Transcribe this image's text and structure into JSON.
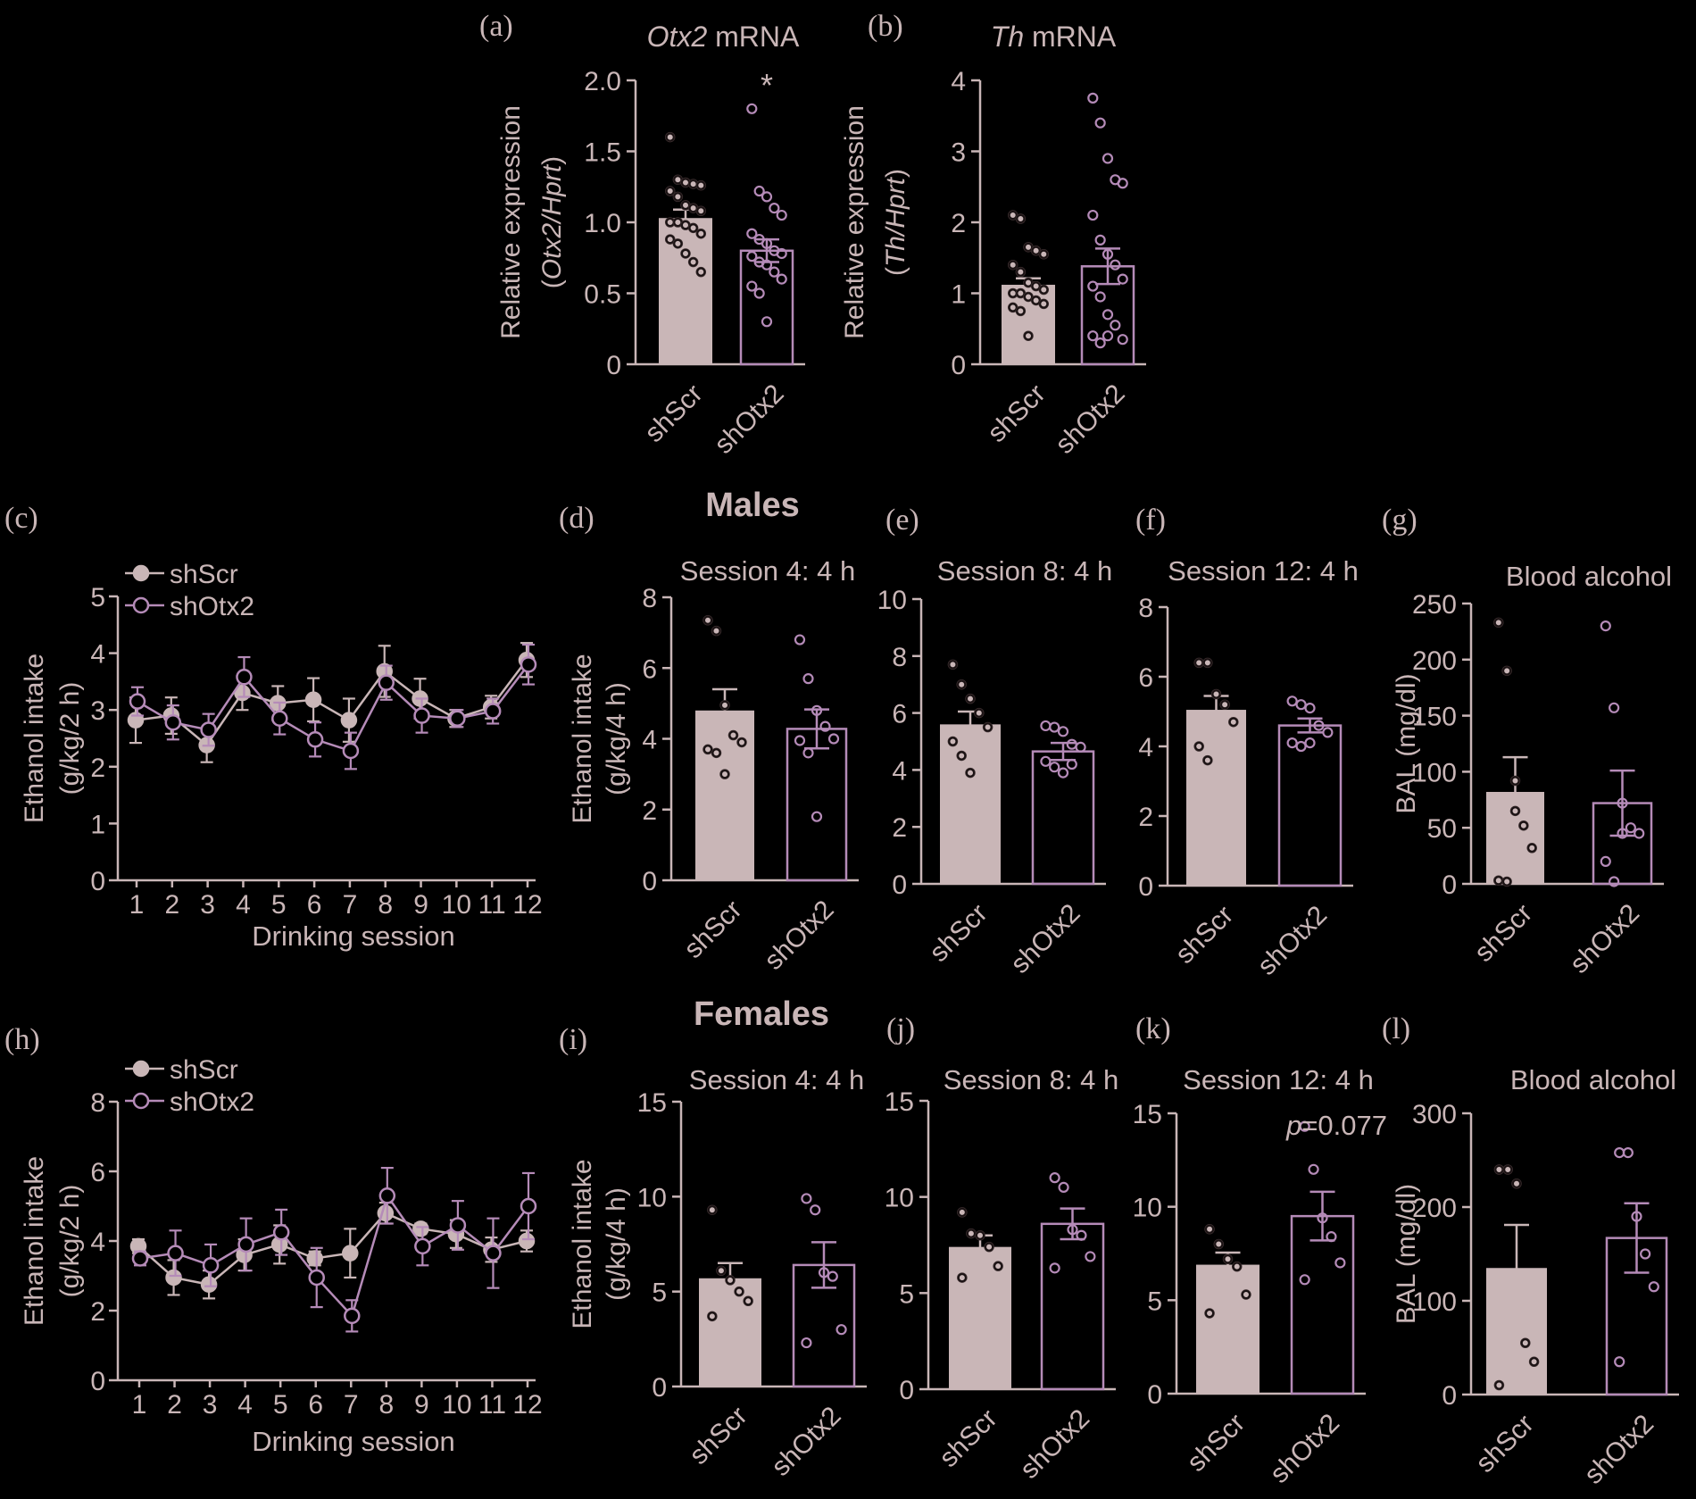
{
  "colors": {
    "background": "#000000",
    "text": "#c9b6b7",
    "axis": "#c9b6b7",
    "shScr": "#c9b6b7",
    "shScr_dark": "#2a1f20",
    "shOtx2": "#b58bb8"
  },
  "section_titles": {
    "males": "Males",
    "females": "Females"
  },
  "chart_data": [
    {
      "id": "a",
      "type": "bar",
      "panel_label": "(a)",
      "title_italic": "Otx2",
      "title_rest": " mRNA",
      "ylabel": "Relative expression",
      "ylabel2_italic": "Otx2/Hprt",
      "categories": [
        "shScr",
        "shOtx2"
      ],
      "ylim": [
        0,
        2.0
      ],
      "yticks": [
        0,
        0.5,
        1.0,
        1.5,
        2.0
      ],
      "yticklabels": [
        "0",
        "0.5",
        "1.0",
        "1.5",
        "2.0"
      ],
      "means": [
        1.03,
        0.8
      ],
      "errors": [
        0.06,
        0.08
      ],
      "points": [
        [
          1.6,
          1.3,
          1.28,
          1.27,
          1.26,
          1.22,
          1.18,
          1.12,
          1.1,
          1.08,
          1.0,
          1.0,
          0.98,
          0.96,
          0.92,
          0.88,
          0.85,
          0.78,
          0.72,
          0.65
        ],
        [
          1.8,
          1.22,
          1.18,
          1.1,
          1.05,
          0.92,
          0.88,
          0.85,
          0.8,
          0.78,
          0.76,
          0.72,
          0.7,
          0.65,
          0.6,
          0.55,
          0.5,
          0.3
        ]
      ],
      "annotation": "*"
    },
    {
      "id": "b",
      "type": "bar",
      "panel_label": "(b)",
      "title_italic": "Th",
      "title_rest": " mRNA",
      "ylabel": "Relative expression",
      "ylabel2_italic": "Th/Hprt",
      "categories": [
        "shScr",
        "shOtx2"
      ],
      "ylim": [
        0,
        4
      ],
      "yticks": [
        0,
        1,
        2,
        3,
        4
      ],
      "yticklabels": [
        "0",
        "1",
        "2",
        "3",
        "4"
      ],
      "means": [
        1.12,
        1.38
      ],
      "errors": [
        0.09,
        0.25
      ],
      "points": [
        [
          2.1,
          2.05,
          1.65,
          1.6,
          1.55,
          1.4,
          1.3,
          1.15,
          1.1,
          1.05,
          1.0,
          1.0,
          0.95,
          0.9,
          0.85,
          0.8,
          0.75,
          0.4
        ],
        [
          3.75,
          3.4,
          2.9,
          2.6,
          2.55,
          2.1,
          1.75,
          1.55,
          1.4,
          1.2,
          1.1,
          0.95,
          0.7,
          0.55,
          0.35,
          0.4,
          0.3,
          0.4
        ]
      ]
    },
    {
      "id": "c",
      "type": "line",
      "panel_label": "(c)",
      "xlabel": "Drinking session",
      "ylabel": "Ethanol intake",
      "ylabel2": "(g/kg/2 h)",
      "x": [
        1,
        2,
        3,
        4,
        5,
        6,
        7,
        8,
        9,
        10,
        11,
        12
      ],
      "ylim": [
        0,
        5
      ],
      "yticks": [
        0,
        1,
        2,
        3,
        4,
        5
      ],
      "yticklabels": [
        "0",
        "1",
        "2",
        "3",
        "4",
        "5"
      ],
      "series": [
        {
          "name": "shScr",
          "values": [
            2.82,
            2.9,
            2.38,
            3.3,
            3.12,
            3.18,
            2.82,
            3.68,
            3.2,
            2.85,
            3.05,
            3.88
          ],
          "errors": [
            0.4,
            0.32,
            0.3,
            0.3,
            0.3,
            0.38,
            0.38,
            0.45,
            0.35,
            0.15,
            0.2,
            0.3
          ]
        },
        {
          "name": "shOtx2",
          "values": [
            3.15,
            2.78,
            2.65,
            3.58,
            2.85,
            2.48,
            2.28,
            3.48,
            2.9,
            2.85,
            2.98,
            3.8
          ],
          "errors": [
            0.25,
            0.3,
            0.28,
            0.35,
            0.28,
            0.3,
            0.32,
            0.3,
            0.3,
            0.15,
            0.22,
            0.35
          ]
        }
      ]
    },
    {
      "id": "d",
      "type": "bar",
      "panel_label": "(d)",
      "title": "Session 4: 4 h",
      "ylabel": "Ethanol intake",
      "ylabel2": "(g/kg/4 h)",
      "categories": [
        "shScr",
        "shOtx2"
      ],
      "ylim": [
        0,
        8
      ],
      "yticks": [
        0,
        2,
        4,
        6,
        8
      ],
      "yticklabels": [
        "0",
        "2",
        "4",
        "6",
        "8"
      ],
      "means": [
        4.8,
        4.28
      ],
      "errors": [
        0.6,
        0.55
      ],
      "points": [
        [
          7.35,
          7.05,
          4.95,
          4.1,
          3.9,
          3.7,
          3.6,
          3.0
        ],
        [
          6.8,
          5.7,
          4.8,
          4.35,
          4.0,
          3.95,
          3.6,
          1.8
        ]
      ]
    },
    {
      "id": "e",
      "type": "bar",
      "panel_label": "(e)",
      "title": "Session 8: 4 h",
      "categories": [
        "shScr",
        "shOtx2"
      ],
      "ylim": [
        0,
        10
      ],
      "yticks": [
        0,
        2,
        4,
        6,
        8,
        10
      ],
      "yticklabels": [
        "0",
        "2",
        "4",
        "6",
        "8",
        "10"
      ],
      "means": [
        5.6,
        4.65
      ],
      "errors": [
        0.45,
        0.3
      ],
      "points": [
        [
          7.7,
          7.0,
          6.5,
          6.0,
          5.5,
          5.0,
          4.5,
          3.9
        ],
        [
          5.55,
          5.5,
          5.35,
          4.9,
          4.8,
          4.3,
          4.1,
          3.9,
          4.2
        ]
      ]
    },
    {
      "id": "f",
      "type": "bar",
      "panel_label": "(f)",
      "title": "Session 12: 4 h",
      "categories": [
        "shScr",
        "shOtx2"
      ],
      "ylim": [
        0,
        8
      ],
      "yticks": [
        0,
        2,
        4,
        6,
        8
      ],
      "yticklabels": [
        "0",
        "2",
        "4",
        "6",
        "8"
      ],
      "means": [
        5.05,
        4.6
      ],
      "errors": [
        0.4,
        0.2
      ],
      "points": [
        [
          6.4,
          6.4,
          5.5,
          5.2,
          4.7,
          4.0,
          3.6
        ],
        [
          5.3,
          5.2,
          5.1,
          4.6,
          4.4,
          4.1,
          4.0,
          4.1
        ]
      ]
    },
    {
      "id": "g",
      "type": "bar",
      "panel_label": "(g)",
      "title": "Blood alcohol",
      "ylabel": "BAL (mg/dl)",
      "categories": [
        "shScr",
        "shOtx2"
      ],
      "ylim": [
        0,
        250
      ],
      "yticks": [
        0,
        50,
        100,
        150,
        200,
        250
      ],
      "yticklabels": [
        "0",
        "50",
        "100",
        "150",
        "200",
        "250"
      ],
      "means": [
        82,
        72
      ],
      "errors": [
        31,
        29
      ],
      "points": [
        [
          233,
          190,
          92,
          52,
          32,
          3,
          2,
          65
        ],
        [
          230,
          157,
          72,
          50,
          45,
          20,
          2,
          45
        ]
      ]
    },
    {
      "id": "h",
      "type": "line",
      "panel_label": "(h)",
      "xlabel": "Drinking session",
      "ylabel": "Ethanol intake",
      "ylabel2": "(g/kg/2 h)",
      "x": [
        1,
        2,
        3,
        4,
        5,
        6,
        7,
        8,
        9,
        10,
        11,
        12
      ],
      "ylim": [
        0,
        8
      ],
      "yticks": [
        0,
        2,
        4,
        6,
        8
      ],
      "yticklabels": [
        "0",
        "2",
        "4",
        "6",
        "8"
      ],
      "series": [
        {
          "name": "shScr",
          "values": [
            3.85,
            2.95,
            2.75,
            3.6,
            3.9,
            3.5,
            3.65,
            4.8,
            4.35,
            4.2,
            3.75,
            4.0
          ],
          "errors": [
            0.2,
            0.5,
            0.4,
            0.45,
            0.55,
            0.2,
            0.7,
            0.3,
            0.15,
            0.4,
            0.35,
            0.3
          ]
        },
        {
          "name": "shOtx2",
          "values": [
            3.5,
            3.65,
            3.3,
            3.9,
            4.25,
            2.95,
            1.85,
            5.3,
            3.85,
            4.45,
            3.65,
            5.0
          ],
          "errors": [
            0.2,
            0.65,
            0.6,
            0.75,
            0.65,
            0.85,
            0.45,
            0.8,
            0.55,
            0.7,
            1.0,
            0.95
          ]
        }
      ]
    },
    {
      "id": "i",
      "type": "bar",
      "panel_label": "(i)",
      "title": "Session 4: 4 h",
      "ylabel": "Ethanol intake",
      "ylabel2": "(g/kg/4 h)",
      "categories": [
        "shScr",
        "shOtx2"
      ],
      "ylim": [
        0,
        15
      ],
      "yticks": [
        0,
        5,
        10,
        15
      ],
      "yticklabels": [
        "0",
        "5",
        "10",
        "15"
      ],
      "means": [
        5.7,
        6.4
      ],
      "errors": [
        0.8,
        1.2
      ],
      "points": [
        [
          9.3,
          6.1,
          5.6,
          5.0,
          4.5,
          3.7
        ],
        [
          9.9,
          9.3,
          6.0,
          5.8,
          3.0,
          2.3
        ]
      ]
    },
    {
      "id": "j",
      "type": "bar",
      "panel_label": "(j)",
      "title": "Session 8: 4 h",
      "categories": [
        "shScr",
        "shOtx2"
      ],
      "ylim": [
        0,
        15
      ],
      "yticks": [
        0,
        5,
        10,
        15
      ],
      "yticklabels": [
        "0",
        "5",
        "10",
        "15"
      ],
      "means": [
        7.4,
        8.6
      ],
      "errors": [
        0.6,
        0.8
      ],
      "points": [
        [
          9.2,
          8.1,
          8.0,
          7.4,
          6.4,
          5.8
        ],
        [
          11.0,
          10.5,
          8.3,
          8.0,
          6.9,
          6.3
        ]
      ]
    },
    {
      "id": "k",
      "type": "bar",
      "panel_label": "(k)",
      "title": "Session 12: 4 h",
      "annotation_italic": "p",
      "annotation": "=0.077",
      "categories": [
        "shScr",
        "shOtx2"
      ],
      "ylim": [
        0,
        15
      ],
      "yticks": [
        0,
        5,
        10,
        15
      ],
      "yticklabels": [
        "0",
        "5",
        "10",
        "15"
      ],
      "means": [
        6.9,
        9.5
      ],
      "errors": [
        0.65,
        1.3
      ],
      "points": [
        [
          8.8,
          8.0,
          7.2,
          6.8,
          5.3,
          4.3
        ],
        [
          14.3,
          12.0,
          9.4,
          8.4,
          7.0,
          6.1
        ]
      ]
    },
    {
      "id": "l",
      "type": "bar",
      "panel_label": "(l)",
      "title": "Blood alcohol",
      "ylabel": "BAL (mg/dl)",
      "categories": [
        "shScr",
        "shOtx2"
      ],
      "ylim": [
        0,
        300
      ],
      "yticks": [
        0,
        100,
        200,
        300
      ],
      "yticklabels": [
        "0",
        "100",
        "200",
        "300"
      ],
      "means": [
        135,
        167
      ],
      "errors": [
        46,
        37
      ],
      "points": [
        [
          240,
          240,
          225,
          55,
          35,
          10
        ],
        [
          258,
          258,
          190,
          150,
          115,
          35
        ]
      ]
    }
  ]
}
